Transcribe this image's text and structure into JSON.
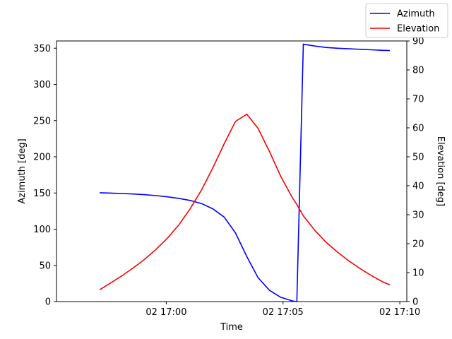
{
  "chart_data": {
    "type": "line",
    "xlabel": "Time",
    "ylabel_left": "Azimuth [deg]",
    "ylabel_right": "Elevation [deg]",
    "x_range_minutes": [
      -4.7,
      10.3
    ],
    "ylim_left": [
      0,
      360
    ],
    "ylim_right": [
      0,
      90
    ],
    "x_ticks": [
      {
        "minute": 0,
        "label": "02 17:00"
      },
      {
        "minute": 5,
        "label": "02 17:05"
      },
      {
        "minute": 10,
        "label": "02 17:10"
      }
    ],
    "y_ticks_left": [
      0,
      50,
      100,
      150,
      200,
      250,
      300,
      350
    ],
    "y_ticks_right": [
      0,
      10,
      20,
      30,
      40,
      50,
      60,
      70,
      80,
      90
    ],
    "grid": false,
    "legend_position": "top-right",
    "x_minutes": [
      -2.85,
      -2.37,
      -1.88,
      -1.4,
      -0.91,
      -0.43,
      0.05,
      0.54,
      1.02,
      1.51,
      1.99,
      2.48,
      2.96,
      3.45,
      3.93,
      4.42,
      4.9,
      5.39,
      5.59,
      5.87,
      6.36,
      6.84,
      7.33,
      7.81,
      8.3,
      8.78,
      9.27,
      9.57
    ],
    "series": [
      {
        "name": "Azimuth",
        "axis": "left",
        "color": "#0000ff",
        "values": [
          150.3,
          149.9,
          149.3,
          148.6,
          147.6,
          146.3,
          144.7,
          142.5,
          139.7,
          135.4,
          128.2,
          116.8,
          95.0,
          62.0,
          33.0,
          15.5,
          6.0,
          1.0,
          0.0,
          355.5,
          353.0,
          351.0,
          350.0,
          349.2,
          348.5,
          347.8,
          347.0,
          346.7
        ]
      },
      {
        "name": "Elevation",
        "axis": "right",
        "color": "#ff0000",
        "values": [
          4.1,
          6.5,
          9.0,
          11.7,
          14.7,
          18.1,
          21.9,
          26.5,
          32.0,
          38.5,
          46.1,
          54.5,
          62.2,
          64.7,
          59.8,
          51.8,
          43.3,
          36.0,
          33.5,
          29.6,
          24.6,
          20.5,
          17.1,
          14.1,
          11.4,
          9.0,
          6.8,
          5.8
        ]
      }
    ]
  }
}
